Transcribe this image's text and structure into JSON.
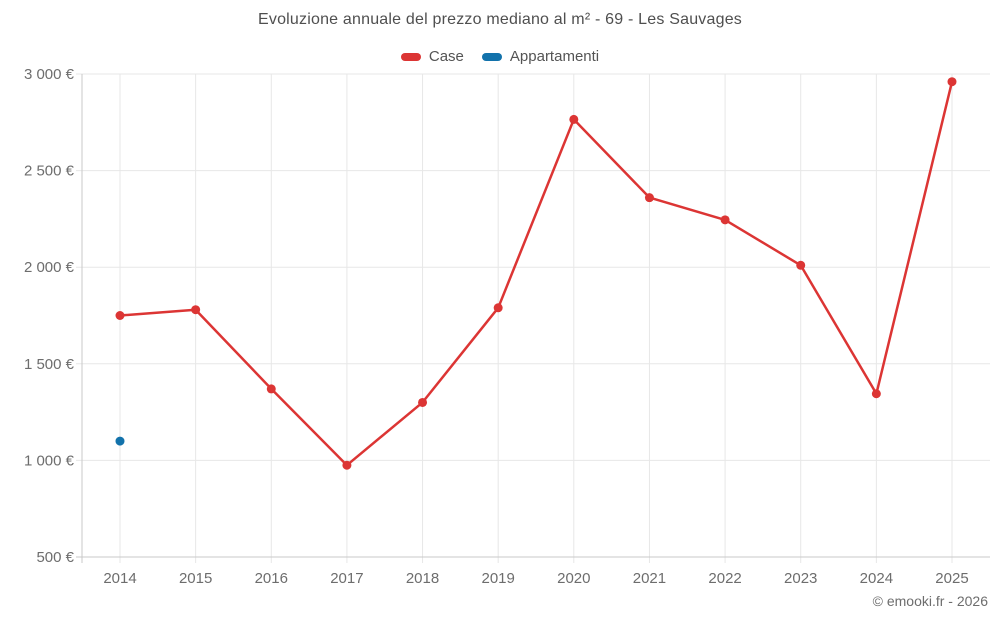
{
  "chart": {
    "title": "Evoluzione annuale del prezzo mediano al m² - 69 - Les Sauvages",
    "copyright": "© emooki.fr - 2026"
  },
  "legend": {
    "items": [
      {
        "label": "Case",
        "color": "#dc3534"
      },
      {
        "label": "Appartamenti",
        "color": "#1272ab"
      }
    ]
  },
  "chart_data": {
    "type": "line",
    "title": "Evoluzione annuale del prezzo mediano al m² - 69 - Les Sauvages",
    "categories": [
      "2014",
      "2015",
      "2016",
      "2017",
      "2018",
      "2019",
      "2020",
      "2021",
      "2022",
      "2023",
      "2024",
      "2025"
    ],
    "series": [
      {
        "name": "Case",
        "color": "#dc3534",
        "values": [
          1750,
          1780,
          1370,
          975,
          1300,
          1790,
          2765,
          2360,
          2245,
          2010,
          1345,
          2960
        ]
      },
      {
        "name": "Appartamenti",
        "color": "#1272ab",
        "values": [
          1100,
          null,
          null,
          null,
          null,
          null,
          null,
          null,
          null,
          null,
          null,
          null
        ]
      }
    ],
    "xlabel": "",
    "ylabel": "",
    "ylim": [
      500,
      3000
    ],
    "y_ticks": [
      {
        "value": 500,
        "label": "500 €"
      },
      {
        "value": 1000,
        "label": "1 000 €"
      },
      {
        "value": 1500,
        "label": "1 500 €"
      },
      {
        "value": 2000,
        "label": "2 000 €"
      },
      {
        "value": 2500,
        "label": "2 500 €"
      },
      {
        "value": 3000,
        "label": "3 000 €"
      }
    ],
    "grid": true,
    "legend_position": "top",
    "colors": {
      "grid": "#e7e7e7",
      "axis": "#c9c9c9",
      "tick_text": "#6d6d6d"
    }
  }
}
